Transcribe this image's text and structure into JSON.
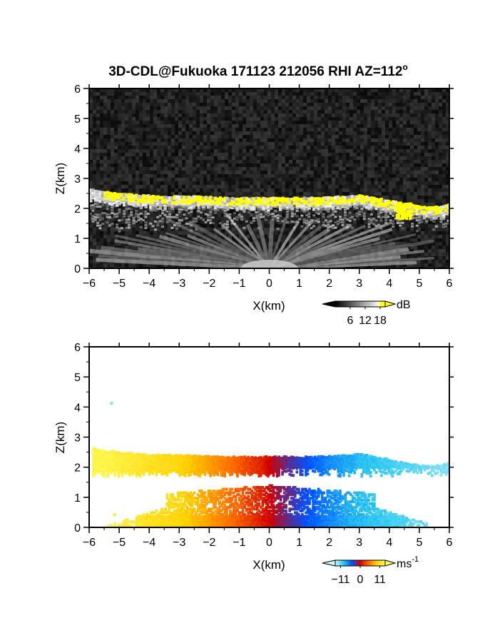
{
  "figure": {
    "title_main": "3D-CDL@Fukuoka 171123 212056 RHI AZ=112",
    "title_degree": "o"
  },
  "chart_data": [
    {
      "type": "heatmap",
      "panel": "top",
      "quantity": "backscatter intensity",
      "xlabel": "X(km)",
      "ylabel": "Z(km)",
      "xlim": [
        -6,
        6
      ],
      "ylim": [
        0,
        6
      ],
      "xticks": [
        -6,
        -5,
        -4,
        -3,
        -2,
        -1,
        0,
        1,
        2,
        3,
        4,
        5,
        6
      ],
      "yticks": [
        0,
        1,
        2,
        3,
        4,
        5,
        6
      ],
      "colorbar": {
        "unit": "dB",
        "ticks": [
          6,
          12,
          18
        ],
        "range": [
          0,
          20
        ],
        "saturation_color": "#ffff00",
        "palette": [
          "#000000",
          "#ffffff"
        ]
      },
      "layer_top_profile": [
        {
          "x": -6.0,
          "z": 2.6
        },
        {
          "x": -5.5,
          "z": 2.5
        },
        {
          "x": -4.5,
          "z": 2.4
        },
        {
          "x": -3.5,
          "z": 2.35
        },
        {
          "x": -2.5,
          "z": 2.35
        },
        {
          "x": -1.5,
          "z": 2.3
        },
        {
          "x": -0.5,
          "z": 2.3
        },
        {
          "x": 0.5,
          "z": 2.3
        },
        {
          "x": 1.5,
          "z": 2.3
        },
        {
          "x": 2.5,
          "z": 2.35
        },
        {
          "x": 3.0,
          "z": 2.4
        },
        {
          "x": 3.5,
          "z": 2.3
        },
        {
          "x": 4.0,
          "z": 2.2
        },
        {
          "x": 4.5,
          "z": 2.1
        },
        {
          "x": 5.0,
          "z": 2.0
        },
        {
          "x": 5.5,
          "z": 2.0
        },
        {
          "x": 6.0,
          "z": 2.1
        }
      ],
      "saturated_region_note": "values above 18 dB near layer top",
      "background_level_db": 4
    },
    {
      "type": "heatmap",
      "panel": "bottom",
      "quantity": "radial velocity",
      "xlabel": "X(km)",
      "ylabel": "Z(km)",
      "xlim": [
        -6,
        6
      ],
      "ylim": [
        0,
        6
      ],
      "xticks": [
        -6,
        -5,
        -4,
        -3,
        -2,
        -1,
        0,
        1,
        2,
        3,
        4,
        5,
        6
      ],
      "yticks": [
        0,
        1,
        2,
        3,
        4,
        5,
        6
      ],
      "colorbar": {
        "unit": "ms",
        "unit_exponent": "-1",
        "ticks": [
          -11,
          0,
          11
        ],
        "range": [
          -14,
          14
        ],
        "palette": [
          "#c8f5ff",
          "#2ac8f0",
          "#0050ff",
          "#d00000",
          "#ff6a00",
          "#ffd000",
          "#ffff60"
        ]
      },
      "velocity_profile": [
        {
          "x": -5.5,
          "v": 13
        },
        {
          "x": -4.0,
          "v": 11
        },
        {
          "x": -3.0,
          "v": 10
        },
        {
          "x": -2.0,
          "v": 7
        },
        {
          "x": -1.0,
          "v": 4
        },
        {
          "x": -0.2,
          "v": 1
        },
        {
          "x": 0.2,
          "v": -1
        },
        {
          "x": 1.0,
          "v": -4
        },
        {
          "x": 2.0,
          "v": -7
        },
        {
          "x": 3.0,
          "v": -9
        },
        {
          "x": 4.0,
          "v": -10
        },
        {
          "x": 5.0,
          "v": -11
        },
        {
          "x": 6.0,
          "v": -12
        }
      ],
      "isolated_points": [
        {
          "x": -5.3,
          "z": 4.1,
          "v": -12
        },
        {
          "x": -5.2,
          "z": 0.4,
          "v": 12
        }
      ]
    }
  ]
}
